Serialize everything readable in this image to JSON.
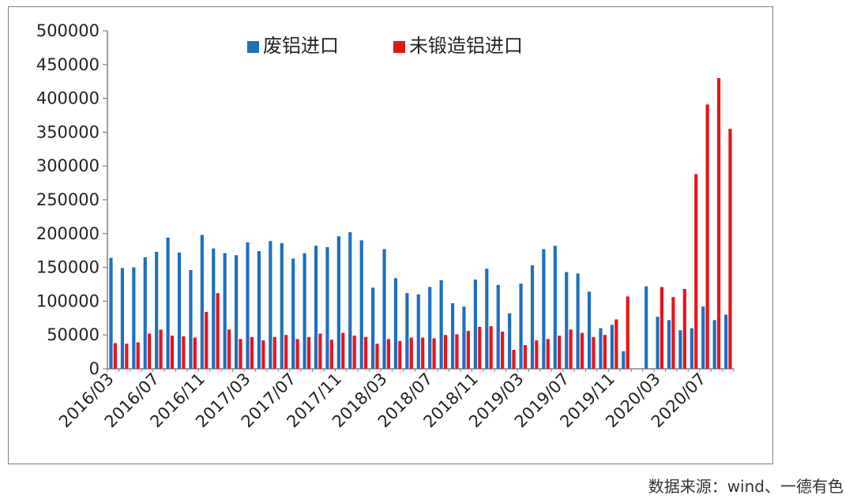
{
  "chart_data": {
    "type": "bar",
    "title": "",
    "xlabel": "",
    "ylabel": "",
    "ylim": [
      0,
      500000
    ],
    "yticks": [
      "0",
      "50000",
      "100000",
      "150000",
      "200000",
      "250000",
      "300000",
      "350000",
      "400000",
      "450000",
      "500000"
    ],
    "xtick_labels": [
      "2016/03",
      "2016/07",
      "2016/11",
      "2017/03",
      "2017/07",
      "2017/11",
      "2018/03",
      "2018/07",
      "2018/11",
      "2019/03",
      "2019/07",
      "2019/11",
      "2020/03",
      "2020/07"
    ],
    "grid": false,
    "legend_position": "top",
    "categories": [
      "2016/03",
      "2016/04",
      "2016/05",
      "2016/06",
      "2016/07",
      "2016/08",
      "2016/09",
      "2016/10",
      "2016/11",
      "2016/12",
      "2017/01",
      "2017/02",
      "2017/03",
      "2017/04",
      "2017/05",
      "2017/06",
      "2017/07",
      "2017/08",
      "2017/09",
      "2017/10",
      "2017/11",
      "2017/12",
      "2018/01",
      "2018/02",
      "2018/03",
      "2018/04",
      "2018/05",
      "2018/06",
      "2018/07",
      "2018/08",
      "2018/09",
      "2018/10",
      "2018/11",
      "2018/12",
      "2019/01",
      "2019/02",
      "2019/03",
      "2019/04",
      "2019/05",
      "2019/06",
      "2019/07",
      "2019/08",
      "2019/09",
      "2019/10",
      "2019/11",
      "2019/12",
      "2020/01",
      "2020/02",
      "2020/03",
      "2020/04",
      "2020/05",
      "2020/06",
      "2020/07",
      "2020/08",
      "2020/09"
    ],
    "series": [
      {
        "name": "废铝进口",
        "color": "#1f6fbf",
        "values": [
          164000,
          149000,
          150000,
          165000,
          173000,
          194000,
          172000,
          146000,
          198000,
          178000,
          171000,
          168000,
          187000,
          174000,
          189000,
          186000,
          163000,
          171000,
          182000,
          180000,
          196000,
          202000,
          190000,
          120000,
          177000,
          134000,
          112000,
          110000,
          121000,
          131000,
          97000,
          92000,
          132000,
          148000,
          124000,
          82000,
          126000,
          153000,
          177000,
          182000,
          143000,
          141000,
          114000,
          60000,
          65000,
          26000,
          null,
          122000,
          77000,
          72000,
          57000,
          60000,
          92000,
          72000,
          80000
        ]
      },
      {
        "name": "未锻造铝进口",
        "color": "#e8141b",
        "values": [
          38000,
          37000,
          39000,
          52000,
          58000,
          49000,
          48000,
          46000,
          84000,
          112000,
          58000,
          44000,
          47000,
          42000,
          47000,
          50000,
          44000,
          47000,
          52000,
          43000,
          53000,
          49000,
          47000,
          37000,
          44000,
          41000,
          46000,
          46000,
          45000,
          50000,
          51000,
          56000,
          62000,
          63000,
          55000,
          28000,
          35000,
          42000,
          44000,
          49000,
          58000,
          53000,
          47000,
          50000,
          73000,
          107000,
          null,
          null,
          121000,
          106000,
          118000,
          288000,
          391000,
          430000,
          355000
        ]
      }
    ]
  },
  "source_note": "数据来源：wind、一德有色"
}
